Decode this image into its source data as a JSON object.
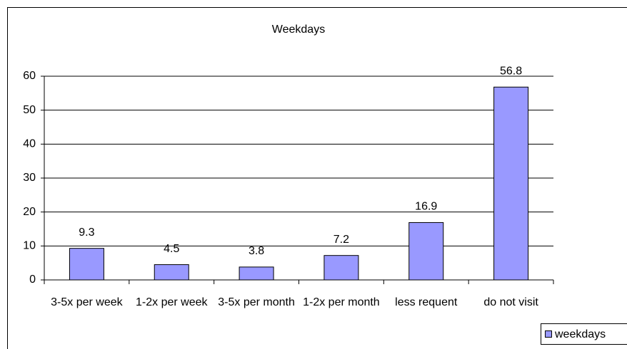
{
  "chart_data": {
    "type": "bar",
    "title": "Weekdays",
    "categories": [
      "3-5x per week",
      "1-2x per week",
      "3-5x per month",
      "1-2x per month",
      "less requent",
      "do not visit"
    ],
    "series": [
      {
        "name": "weekdays",
        "color": "#9999ff",
        "values": [
          9.3,
          4.5,
          3.8,
          7.2,
          16.9,
          56.8
        ]
      }
    ],
    "ylim": [
      0,
      60
    ],
    "yticks": [
      0,
      10,
      20,
      30,
      40,
      50,
      60
    ],
    "grid": true
  }
}
